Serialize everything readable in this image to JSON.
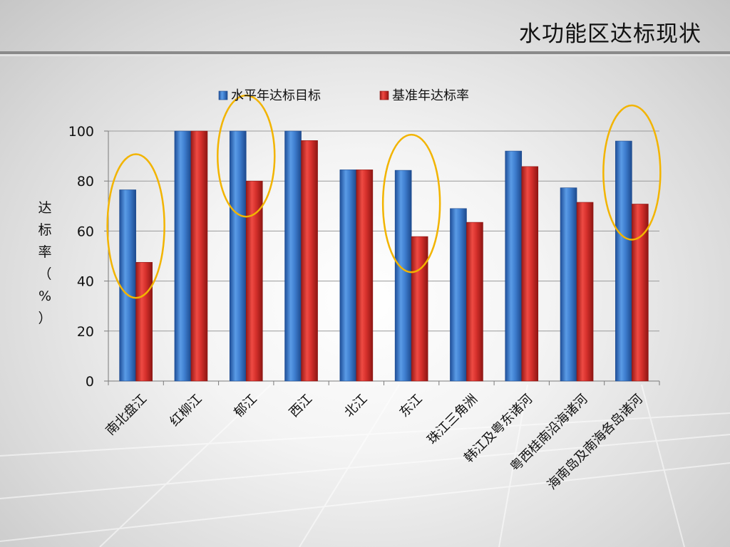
{
  "slide": {
    "title": "水功能区达标现状"
  },
  "colors": {
    "series_blue": "#3f7fd0",
    "series_red": "#d6302c",
    "highlight_ellipse": "#f2b400"
  },
  "chart_data": {
    "type": "bar",
    "title": "",
    "xlabel": "",
    "ylabel": "达标率（%）",
    "ylim": [
      0,
      100
    ],
    "yticks": [
      "0",
      "20",
      "40",
      "60",
      "80",
      "100"
    ],
    "grid": true,
    "legend_position": "top",
    "categories": [
      "南北盘江",
      "红柳江",
      "郁江",
      "西江",
      "北江",
      "东江",
      "珠江三角洲",
      "韩江及粤东诸河",
      "粤西桂南沿海诸河",
      "海南岛及南海各岛诸河"
    ],
    "series": [
      {
        "name": "水平年达标目标",
        "values": [
          76.5,
          100,
          100,
          100,
          84.5,
          84.3,
          69,
          92,
          77.3,
          96
        ]
      },
      {
        "name": "基准年达标率",
        "values": [
          47.5,
          100,
          80,
          96.2,
          84.5,
          57.8,
          63.5,
          85.8,
          71.5,
          70.8
        ]
      }
    ],
    "highlighted_categories": [
      "南北盘江",
      "郁江",
      "东江",
      "海南岛及南海各岛诸河"
    ]
  }
}
